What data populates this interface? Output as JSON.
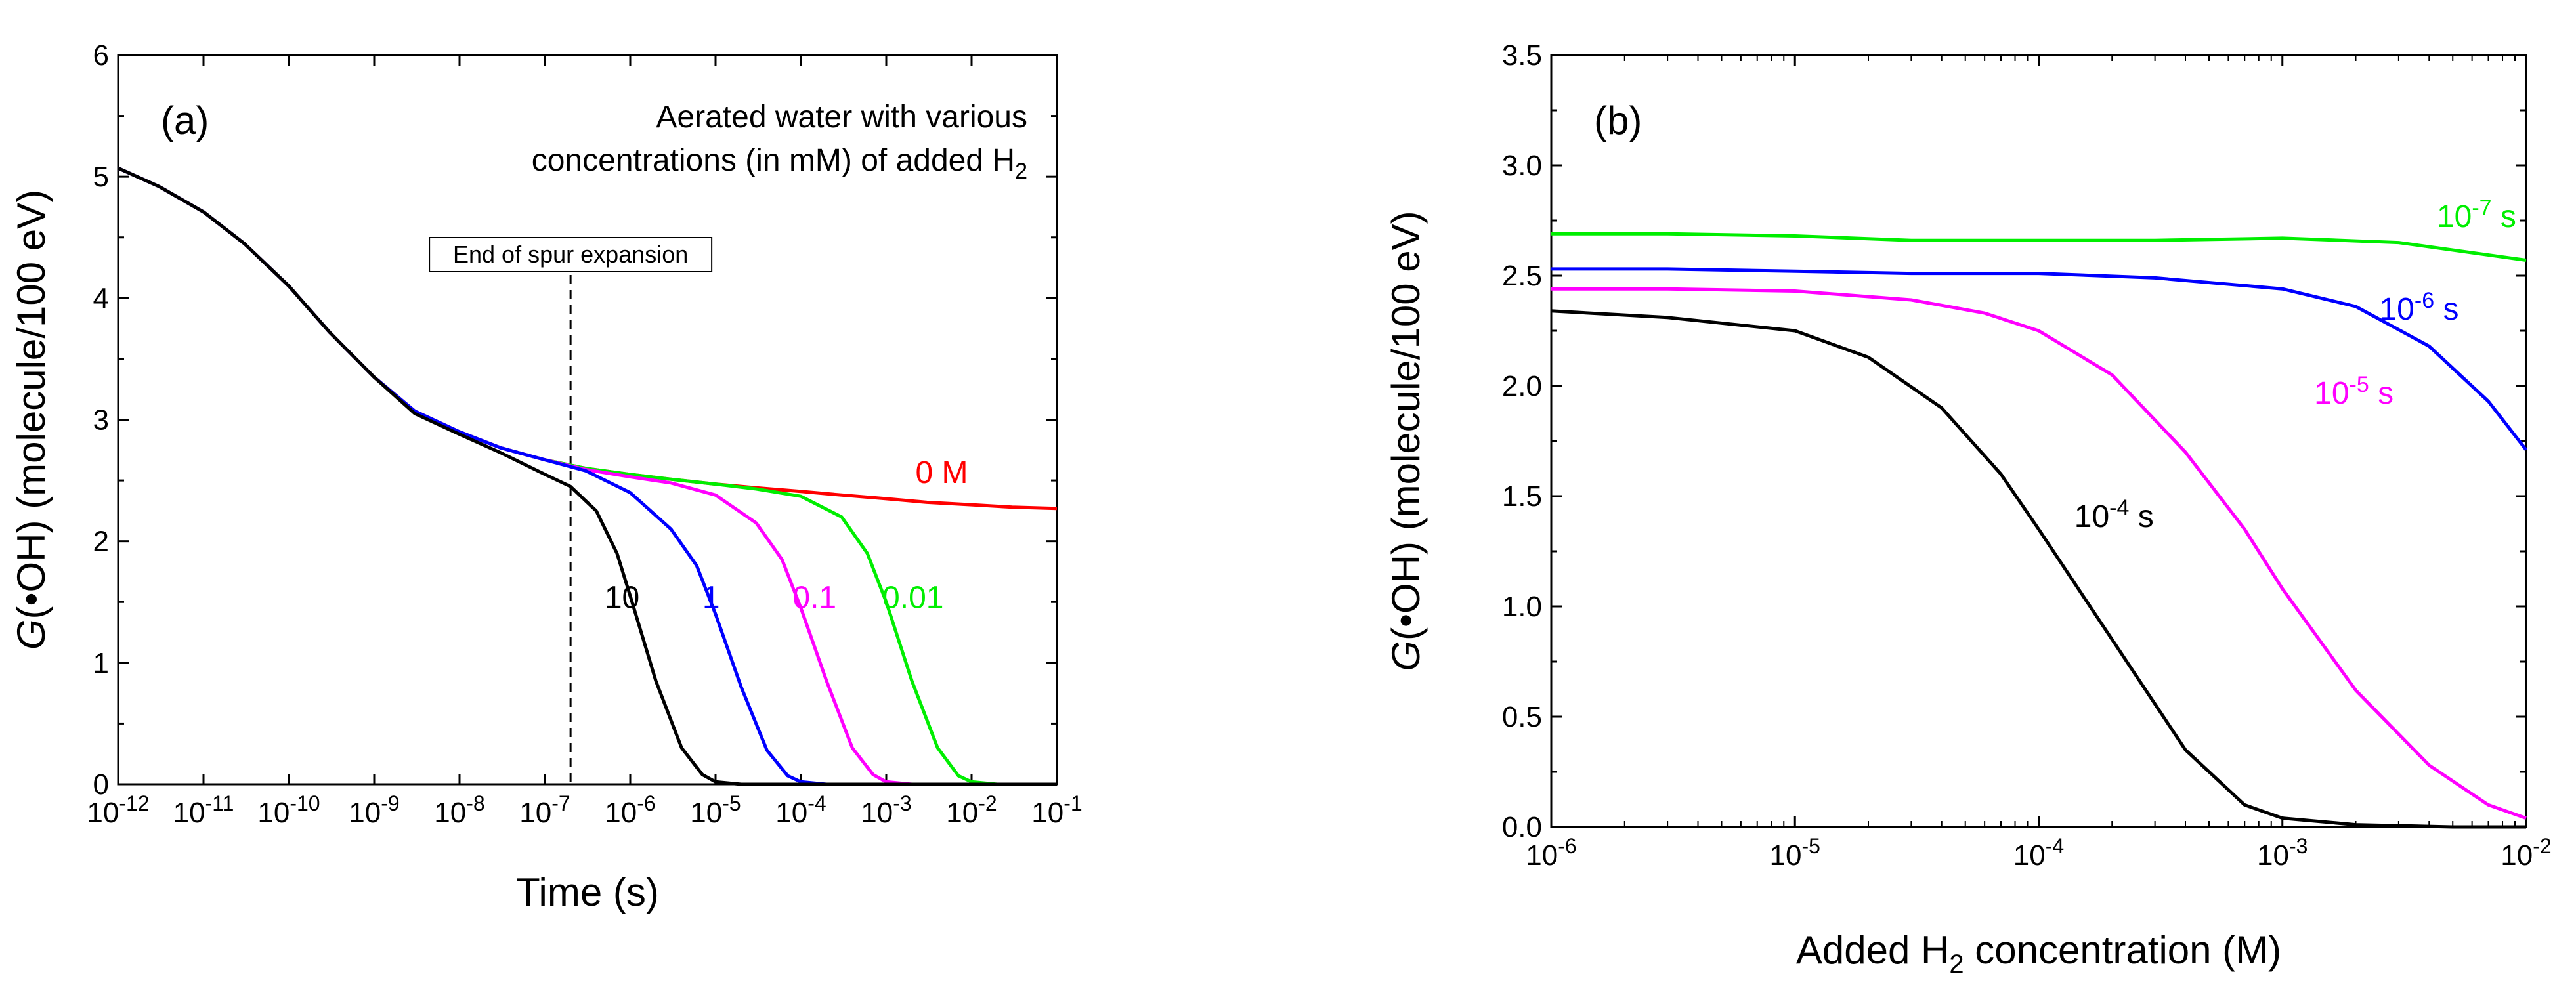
{
  "chart_data": [
    {
      "type": "line",
      "panel_label": "(a)",
      "xscale": "log",
      "xlim": [
        1e-12,
        0.1
      ],
      "ylim": [
        0,
        6
      ],
      "y_ticks": [
        "0",
        "1",
        "2",
        "3",
        "4",
        "5",
        "6"
      ],
      "x_ticks": [
        {
          "base": "10",
          "exp": "-12"
        },
        {
          "base": "10",
          "exp": "-11"
        },
        {
          "base": "10",
          "exp": "-10"
        },
        {
          "base": "10",
          "exp": "-9"
        },
        {
          "base": "10",
          "exp": "-8"
        },
        {
          "base": "10",
          "exp": "-7"
        },
        {
          "base": "10",
          "exp": "-6"
        },
        {
          "base": "10",
          "exp": "-5"
        },
        {
          "base": "10",
          "exp": "-4"
        },
        {
          "base": "10",
          "exp": "-3"
        },
        {
          "base": "10",
          "exp": "-2"
        },
        {
          "base": "10",
          "exp": "-1"
        }
      ],
      "xlabel": "Time (s)",
      "ylabel": {
        "italic": "G",
        "rest": "(•OH) (molecule/100 eV)"
      },
      "annotation_title": {
        "line1": "Aerated water with various",
        "line2": "concentrations (in mM) of added H",
        "line2_sub": "2"
      },
      "marker": {
        "x": 2e-07,
        "label": "End of spur expansion"
      },
      "series": [
        {
          "name": "0 M",
          "color": "#ff0000",
          "x": [
            1e-12,
            3e-12,
            1e-11,
            3e-11,
            1e-10,
            3e-10,
            1e-09,
            3e-09,
            1e-08,
            3e-08,
            1e-07,
            3e-07,
            1e-06,
            3e-06,
            1e-05,
            3e-05,
            0.0001,
            0.0003,
            0.001,
            0.003,
            0.01,
            0.03,
            0.1
          ],
          "y": [
            5.07,
            4.92,
            4.71,
            4.45,
            4.1,
            3.72,
            3.35,
            3.07,
            2.9,
            2.77,
            2.67,
            2.6,
            2.55,
            2.51,
            2.47,
            2.44,
            2.41,
            2.38,
            2.35,
            2.32,
            2.3,
            2.28,
            2.27
          ]
        },
        {
          "name": "0.01",
          "color": "#00ee00",
          "x": [
            1e-12,
            3e-12,
            1e-11,
            3e-11,
            1e-10,
            3e-10,
            1e-09,
            3e-09,
            1e-08,
            3e-08,
            1e-07,
            3e-07,
            1e-06,
            3e-06,
            1e-05,
            3e-05,
            0.0001,
            0.0003,
            0.0006,
            0.001,
            0.002,
            0.004,
            0.007,
            0.01,
            0.02,
            0.1
          ],
          "y": [
            5.07,
            4.92,
            4.71,
            4.45,
            4.1,
            3.72,
            3.35,
            3.07,
            2.9,
            2.77,
            2.67,
            2.6,
            2.55,
            2.51,
            2.47,
            2.43,
            2.37,
            2.2,
            1.9,
            1.5,
            0.85,
            0.3,
            0.07,
            0.02,
            0.0,
            0.0
          ]
        },
        {
          "name": "0.1",
          "color": "#ff00ff",
          "x": [
            1e-12,
            3e-12,
            1e-11,
            3e-11,
            1e-10,
            3e-10,
            1e-09,
            3e-09,
            1e-08,
            3e-08,
            1e-07,
            3e-07,
            1e-06,
            3e-06,
            1e-05,
            3e-05,
            6e-05,
            0.0001,
            0.0002,
            0.0004,
            0.0007,
            0.001,
            0.002,
            0.1
          ],
          "y": [
            5.07,
            4.92,
            4.71,
            4.45,
            4.1,
            3.72,
            3.35,
            3.07,
            2.9,
            2.77,
            2.67,
            2.59,
            2.53,
            2.48,
            2.38,
            2.15,
            1.85,
            1.45,
            0.85,
            0.3,
            0.08,
            0.02,
            0.0,
            0.0
          ]
        },
        {
          "name": "1",
          "color": "#0000ff",
          "x": [
            1e-12,
            3e-12,
            1e-11,
            3e-11,
            1e-10,
            3e-10,
            1e-09,
            3e-09,
            1e-08,
            3e-08,
            1e-07,
            3e-07,
            1e-06,
            3e-06,
            6e-06,
            1e-05,
            2e-05,
            4e-05,
            7e-05,
            0.0001,
            0.0002,
            0.1
          ],
          "y": [
            5.07,
            4.92,
            4.71,
            4.45,
            4.1,
            3.72,
            3.35,
            3.07,
            2.9,
            2.77,
            2.67,
            2.58,
            2.4,
            2.1,
            1.8,
            1.4,
            0.8,
            0.28,
            0.07,
            0.02,
            0.0,
            0.0
          ]
        },
        {
          "name": "10",
          "color": "#000000",
          "x": [
            1e-12,
            3e-12,
            1e-11,
            3e-11,
            1e-10,
            3e-10,
            1e-09,
            3e-09,
            1e-08,
            3e-08,
            1e-07,
            2e-07,
            4e-07,
            7e-07,
            1e-06,
            2e-06,
            4e-06,
            7e-06,
            1e-05,
            2e-05,
            0.1
          ],
          "y": [
            5.07,
            4.92,
            4.71,
            4.45,
            4.1,
            3.72,
            3.35,
            3.05,
            2.88,
            2.73,
            2.55,
            2.45,
            2.25,
            1.9,
            1.55,
            0.85,
            0.3,
            0.08,
            0.02,
            0.0,
            0.0
          ]
        }
      ],
      "curve_labels": [
        {
          "text": "0 M",
          "x": 0.0022,
          "y": 2.48,
          "color": "#ff0000"
        },
        {
          "text": "10",
          "x": 5e-07,
          "y": 1.45,
          "color": "#000000"
        },
        {
          "text": "1",
          "x": 7e-06,
          "y": 1.45,
          "color": "#0000ff"
        },
        {
          "text": "0.1",
          "x": 8e-05,
          "y": 1.45,
          "color": "#ff00ff"
        },
        {
          "text": "0.01",
          "x": 0.0009,
          "y": 1.45,
          "color": "#00ee00"
        }
      ]
    },
    {
      "type": "line",
      "panel_label": "(b)",
      "xscale": "log",
      "xlim": [
        1e-06,
        0.01
      ],
      "ylim": [
        0,
        3.5
      ],
      "y_ticks": [
        "0.0",
        "0.5",
        "1.0",
        "1.5",
        "2.0",
        "2.5",
        "3.0",
        "3.5"
      ],
      "x_ticks": [
        {
          "base": "10",
          "exp": "-6"
        },
        {
          "base": "10",
          "exp": "-5"
        },
        {
          "base": "10",
          "exp": "-4"
        },
        {
          "base": "10",
          "exp": "-3"
        },
        {
          "base": "10",
          "exp": "-2"
        }
      ],
      "xlabel": {
        "pre": "Added H",
        "sub": "2",
        "post": " concentration (M)"
      },
      "ylabel": {
        "italic": "G",
        "rest": "(•OH) (molecule/100 eV)"
      },
      "series": [
        {
          "name": "10^-7 s",
          "color": "#00ee00",
          "x": [
            1e-06,
            3e-06,
            1e-05,
            3e-05,
            0.0001,
            0.0003,
            0.001,
            0.003,
            0.01
          ],
          "y": [
            2.69,
            2.69,
            2.68,
            2.66,
            2.66,
            2.66,
            2.67,
            2.65,
            2.57
          ]
        },
        {
          "name": "10^-6 s",
          "color": "#0000ff",
          "x": [
            1e-06,
            3e-06,
            1e-05,
            3e-05,
            0.0001,
            0.0003,
            0.001,
            0.002,
            0.004,
            0.007,
            0.01
          ],
          "y": [
            2.53,
            2.53,
            2.52,
            2.51,
            2.51,
            2.49,
            2.44,
            2.36,
            2.18,
            1.93,
            1.71
          ]
        },
        {
          "name": "10^-5 s",
          "color": "#ff00ff",
          "x": [
            1e-06,
            3e-06,
            1e-05,
            3e-05,
            6e-05,
            0.0001,
            0.0002,
            0.0004,
            0.0007,
            0.001,
            0.002,
            0.004,
            0.007,
            0.01
          ],
          "y": [
            2.44,
            2.44,
            2.43,
            2.39,
            2.33,
            2.25,
            2.05,
            1.7,
            1.35,
            1.08,
            0.62,
            0.28,
            0.1,
            0.04
          ]
        },
        {
          "name": "10^-4 s",
          "color": "#000000",
          "x": [
            1e-06,
            3e-06,
            1e-05,
            2e-05,
            4e-05,
            7e-05,
            0.0001,
            0.0002,
            0.0004,
            0.0007,
            0.001,
            0.002,
            0.005,
            0.01
          ],
          "y": [
            2.34,
            2.31,
            2.25,
            2.13,
            1.9,
            1.6,
            1.35,
            0.85,
            0.35,
            0.1,
            0.04,
            0.01,
            0.0,
            0.0
          ]
        }
      ],
      "curve_labels": [
        {
          "base": "10",
          "exp": "-7",
          "suffix": " s",
          "x": 0.0043,
          "y": 2.72,
          "color": "#00ee00"
        },
        {
          "base": "10",
          "exp": "-6",
          "suffix": " s",
          "x": 0.0025,
          "y": 2.3,
          "color": "#0000ff"
        },
        {
          "base": "10",
          "exp": "-5",
          "suffix": " s",
          "x": 0.00135,
          "y": 1.92,
          "color": "#ff00ff"
        },
        {
          "base": "10",
          "exp": "-4",
          "suffix": " s",
          "x": 0.00014,
          "y": 1.36,
          "color": "#000000"
        }
      ]
    }
  ]
}
